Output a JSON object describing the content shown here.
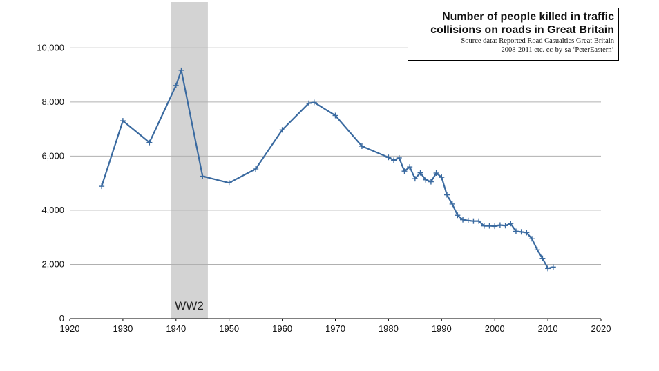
{
  "title_box": {
    "title_line1": "Number of people killed in traffic",
    "title_line2": "collisions on roads in Great Britain",
    "source_line1": "Source data: Reported Road Casualties Great Britain",
    "source_line2": "2008-2011 etc.  cc-by-sa ‘PeterEastern’"
  },
  "chart_data": {
    "type": "line",
    "title": "Number of people killed in traffic collisions on roads in Great Britain",
    "xlabel": "",
    "ylabel": "",
    "xlim": [
      1920,
      2020
    ],
    "ylim": [
      0,
      11000
    ],
    "x_ticks": [
      1920,
      1930,
      1940,
      1950,
      1960,
      1970,
      1980,
      1990,
      2000,
      2010,
      2020
    ],
    "x_tick_labels": [
      "1920",
      "1930",
      "1940",
      "1950",
      "1960",
      "1970",
      "1980",
      "1990",
      "2000",
      "2010",
      "2020"
    ],
    "y_ticks": [
      0,
      2000,
      4000,
      6000,
      8000,
      10000
    ],
    "y_tick_labels": [
      "0",
      "2,000",
      "4,000",
      "6,000",
      "8,000",
      "10,000"
    ],
    "grid": "horizontal",
    "line_color": "#3a6aa0",
    "shaded_region": {
      "x_start": 1939,
      "x_end": 1946,
      "label": "WW2",
      "color": "#d3d3d3"
    },
    "series": [
      {
        "x": [
          1926,
          1930,
          1935,
          1940,
          1941,
          1945,
          1950,
          1955,
          1960,
          1965,
          1966,
          1970,
          1975,
          1980,
          1981,
          1982,
          1983,
          1984,
          1985,
          1986,
          1987,
          1988,
          1989,
          1990,
          1991,
          1992,
          1993,
          1994,
          1995,
          1996,
          1997,
          1998,
          1999,
          2000,
          2001,
          2002,
          2003,
          2004,
          2005,
          2006,
          2007,
          2008,
          2009,
          2010,
          2011
        ],
        "y": [
          4886,
          7305,
          6502,
          8609,
          9169,
          5256,
          5012,
          5526,
          6970,
          7952,
          7985,
          7499,
          6366,
          5953,
          5846,
          5934,
          5445,
          5599,
          5165,
          5382,
          5125,
          5052,
          5373,
          5217,
          4568,
          4229,
          3814,
          3650,
          3621,
          3598,
          3599,
          3421,
          3423,
          3409,
          3450,
          3431,
          3508,
          3221,
          3201,
          3172,
          2946,
          2538,
          2222,
          1850,
          1901
        ]
      }
    ]
  }
}
